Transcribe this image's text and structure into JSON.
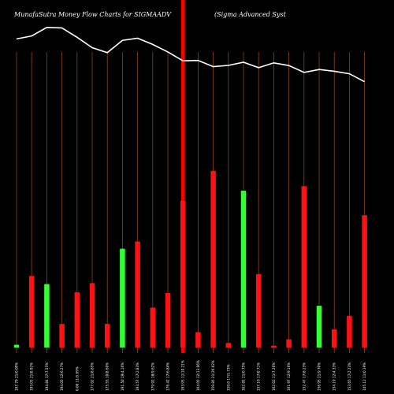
{
  "header": {
    "title": "MunafaSutra  Money Flow  Charts for SIGMAADV",
    "company": "(Sigma  Advanced Syst"
  },
  "chart_data": {
    "type": "bar",
    "colors": {
      "background": "#000000",
      "up": "#33ff33",
      "down": "#ff1111",
      "price_line": "#ffffff",
      "grid": "#8b4513",
      "highlight": "#ff0000"
    },
    "categories": [
      "197.79 21(0.00%",
      "193.05 21(0.92%",
      "194.84 17(7.55%",
      "194.05 12(6.27%",
      "0.00 11(5.69%",
      "177.02 21(8.85%",
      "175.55 10(8.60%",
      "191.50 19(4.16%",
      "193.57 17(2.83%",
      "179.92 18(9.62%",
      "176.42 17(6.84%",
      "163.95 11(10.21%",
      "164.05 12(13.06%",
      "159.85 21(26.02%",
      "159.0 17(5.73%",
      "162.85 11(0.75%",
      "157.10 17(0.71%",
      "162.02 11(7.26%",
      "161.97 12(9.16%",
      "152.47 17(8.23%",
      "156.95 21(9.70%",
      "154.19 12(4.33%",
      "153.65 17(2.23%",
      "145.12 11(0.19%"
    ],
    "direction": [
      "up",
      "down",
      "up",
      "down",
      "down",
      "down",
      "down",
      "up",
      "down",
      "down",
      "down",
      "down",
      "down",
      "down",
      "down",
      "up",
      "down",
      "down",
      "down",
      "down",
      "up",
      "down",
      "down",
      "down"
    ],
    "volume": [
      3,
      79,
      70,
      26,
      61,
      71,
      26,
      109,
      117,
      44,
      60,
      162,
      17,
      195,
      5,
      173,
      81,
      2,
      9,
      178,
      46,
      20,
      35,
      146
    ],
    "price": [
      197.79,
      199.6,
      204.8,
      204.5,
      198.8,
      192.4,
      189.4,
      196.9,
      198.2,
      194.4,
      189.8,
      184.4,
      184.6,
      180.8,
      181.6,
      183.5,
      180.2,
      183.1,
      181.5,
      177.3,
      179.1,
      178.0,
      176.5,
      171.6
    ],
    "price_range": [
      0,
      210
    ],
    "volume_range": [
      0,
      200
    ],
    "highlight_index": 11
  }
}
